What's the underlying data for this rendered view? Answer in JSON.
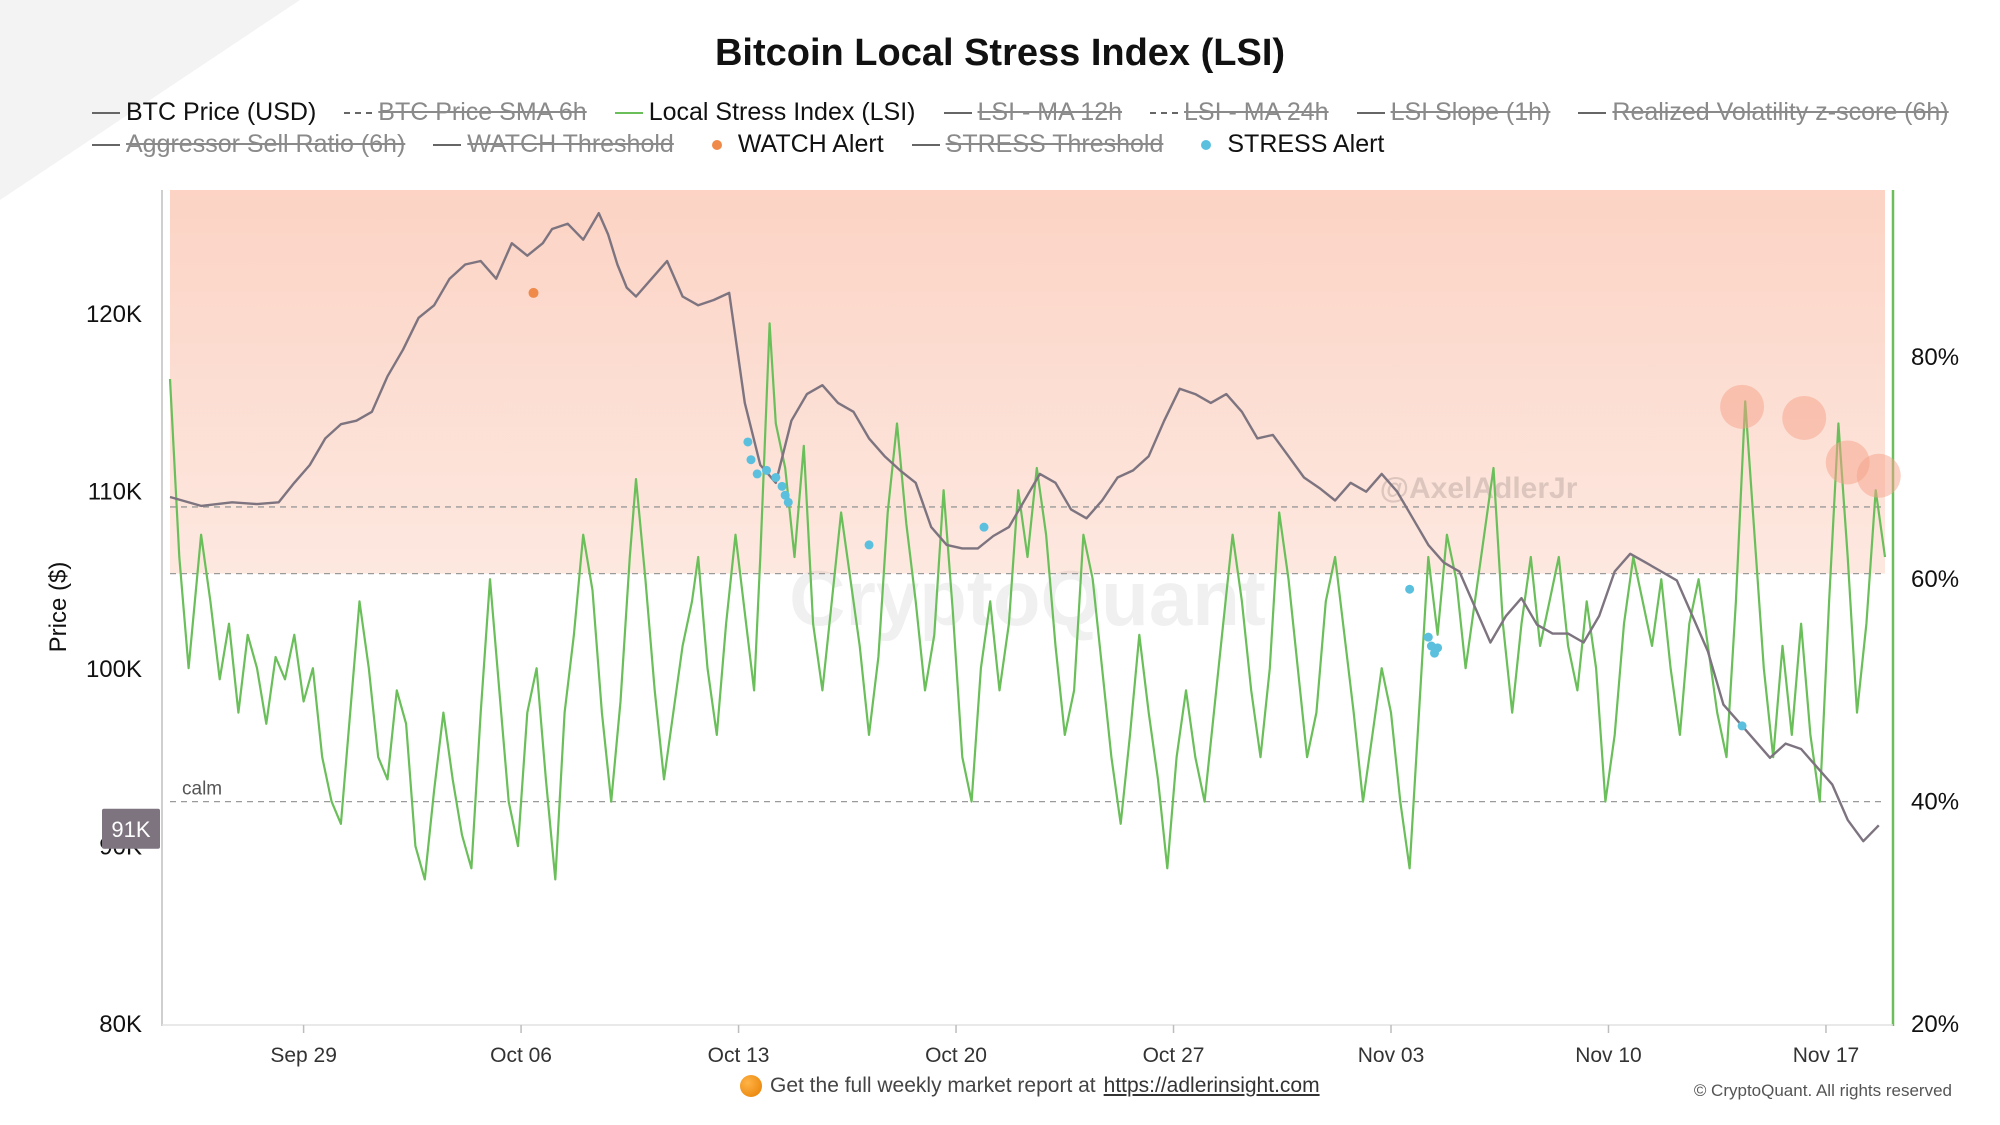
{
  "chart_data": {
    "type": "line",
    "title": "Bitcoin Local Stress Index (LSI)",
    "ylabel": "Price ($)",
    "ylim_left": [
      80000,
      127000
    ],
    "ylim_right": [
      20,
      95
    ],
    "left_ticks": [
      {
        "value": 80000,
        "label": "80K"
      },
      {
        "value": 90000,
        "label": "90K"
      },
      {
        "value": 100000,
        "label": "100K"
      },
      {
        "value": 110000,
        "label": "110K"
      },
      {
        "value": 120000,
        "label": "120K"
      }
    ],
    "right_ticks": [
      {
        "value": 20,
        "label": "20%"
      },
      {
        "value": 40,
        "label": "40%"
      },
      {
        "value": 60,
        "label": "60%"
      },
      {
        "value": 80,
        "label": "80%"
      }
    ],
    "x_ticks": [
      {
        "t": 4.3,
        "label": "Sep 29"
      },
      {
        "t": 11.3,
        "label": "Oct 06"
      },
      {
        "t": 18.3,
        "label": "Oct 13"
      },
      {
        "t": 25.3,
        "label": "Oct 20"
      },
      {
        "t": 32.3,
        "label": "Oct 27"
      },
      {
        "t": 39.3,
        "label": "Nov 03"
      },
      {
        "t": 46.3,
        "label": "Nov 10"
      },
      {
        "t": 53.3,
        "label": "Nov 17"
      }
    ],
    "xlim": [
      0,
      55.2
    ],
    "legend": [
      {
        "label": "BTC Price (USD)",
        "style": "line",
        "color": "#666666",
        "active": true
      },
      {
        "label": "BTC Price SMA 6h",
        "style": "dashed",
        "color": "#666666",
        "active": false
      },
      {
        "label": "Local Stress Index (LSI)",
        "style": "line",
        "color": "#6abf5a",
        "active": true
      },
      {
        "label": "LSI - MA 12h",
        "style": "line",
        "color": "#666666",
        "active": false
      },
      {
        "label": "LSI - MA 24h",
        "style": "dashed",
        "color": "#666666",
        "active": false
      },
      {
        "label": "LSI Slope (1h)",
        "style": "line",
        "color": "#666666",
        "active": false
      },
      {
        "label": "Realized Volatility z-score (6h)",
        "style": "line",
        "color": "#666666",
        "active": false
      },
      {
        "label": "Aggressor Sell Ratio (6h)",
        "style": "line",
        "color": "#666666",
        "active": false
      },
      {
        "label": "WATCH Threshold",
        "style": "line",
        "color": "#666666",
        "active": false
      },
      {
        "label": "WATCH Alert",
        "style": "dot",
        "color": "#f08a4b",
        "active": true
      },
      {
        "label": "STRESS Threshold",
        "style": "line",
        "color": "#666666",
        "active": false
      },
      {
        "label": "STRESS Alert",
        "style": "dot",
        "color": "#5bc0de",
        "active": true
      }
    ],
    "thresholds": [
      {
        "name": "stress",
        "value": 66.5
      },
      {
        "name": "watch",
        "value": 60.5
      },
      {
        "name": "calm",
        "value": 40,
        "label": "calm"
      }
    ],
    "current_price_label": "91K",
    "current_price": 91000,
    "btc_price": {
      "name": "BTC Price (USD)",
      "points": [
        [
          0,
          109700
        ],
        [
          1,
          109200
        ],
        [
          2,
          109400
        ],
        [
          2.8,
          109300
        ],
        [
          3.5,
          109400
        ],
        [
          4,
          110500
        ],
        [
          4.5,
          111500
        ],
        [
          5,
          113000
        ],
        [
          5.5,
          113800
        ],
        [
          6,
          114000
        ],
        [
          6.5,
          114500
        ],
        [
          7,
          116500
        ],
        [
          7.5,
          118000
        ],
        [
          8,
          119800
        ],
        [
          8.5,
          120500
        ],
        [
          9,
          122000
        ],
        [
          9.5,
          122800
        ],
        [
          10,
          123000
        ],
        [
          10.5,
          122000
        ],
        [
          11,
          124000
        ],
        [
          11.5,
          123300
        ],
        [
          12,
          124000
        ],
        [
          12.3,
          124800
        ],
        [
          12.8,
          125100
        ],
        [
          13.3,
          124200
        ],
        [
          13.8,
          125700
        ],
        [
          14.1,
          124500
        ],
        [
          14.4,
          122800
        ],
        [
          14.7,
          121500
        ],
        [
          15.0,
          121000
        ],
        [
          15.5,
          122000
        ],
        [
          16,
          123000
        ],
        [
          16.5,
          121000
        ],
        [
          17,
          120500
        ],
        [
          17.5,
          120800
        ],
        [
          18,
          121200
        ],
        [
          18.5,
          115000
        ],
        [
          19,
          111500
        ],
        [
          19.5,
          110500
        ],
        [
          20,
          114000
        ],
        [
          20.5,
          115500
        ],
        [
          21,
          116000
        ],
        [
          21.5,
          115000
        ],
        [
          22,
          114500
        ],
        [
          22.5,
          113000
        ],
        [
          23,
          112000
        ],
        [
          23.5,
          111200
        ],
        [
          24,
          110500
        ],
        [
          24.5,
          108000
        ],
        [
          25,
          107000
        ],
        [
          25.5,
          106800
        ],
        [
          26,
          106800
        ],
        [
          26.5,
          107500
        ],
        [
          27,
          108000
        ],
        [
          27.5,
          109500
        ],
        [
          28,
          111000
        ],
        [
          28.5,
          110500
        ],
        [
          29,
          109000
        ],
        [
          29.5,
          108500
        ],
        [
          30,
          109500
        ],
        [
          30.5,
          110800
        ],
        [
          31,
          111200
        ],
        [
          31.5,
          112000
        ],
        [
          32,
          114000
        ],
        [
          32.5,
          115800
        ],
        [
          33,
          115500
        ],
        [
          33.5,
          115000
        ],
        [
          34,
          115500
        ],
        [
          34.5,
          114500
        ],
        [
          35,
          113000
        ],
        [
          35.5,
          113200
        ],
        [
          36,
          112000
        ],
        [
          36.5,
          110800
        ],
        [
          37,
          110200
        ],
        [
          37.5,
          109500
        ],
        [
          38,
          110500
        ],
        [
          38.5,
          110000
        ],
        [
          39,
          111000
        ],
        [
          39.5,
          110000
        ],
        [
          40,
          108500
        ],
        [
          40.5,
          107000
        ],
        [
          41,
          106000
        ],
        [
          41.5,
          105500
        ],
        [
          42,
          103500
        ],
        [
          42.5,
          101500
        ],
        [
          43,
          103000
        ],
        [
          43.5,
          104000
        ],
        [
          44,
          102500
        ],
        [
          44.5,
          102000
        ],
        [
          45,
          102000
        ],
        [
          45.5,
          101500
        ],
        [
          46,
          103000
        ],
        [
          46.5,
          105500
        ],
        [
          47,
          106500
        ],
        [
          47.5,
          106000
        ],
        [
          48,
          105500
        ],
        [
          48.5,
          105000
        ],
        [
          49,
          103000
        ],
        [
          49.5,
          101000
        ],
        [
          50,
          98000
        ],
        [
          50.5,
          97000
        ],
        [
          51,
          96000
        ],
        [
          51.5,
          95000
        ],
        [
          52,
          95800
        ],
        [
          52.5,
          95500
        ],
        [
          53,
          94500
        ],
        [
          53.5,
          93500
        ],
        [
          54,
          91500
        ],
        [
          54.5,
          90300
        ],
        [
          55,
          91200
        ]
      ]
    },
    "lsi": {
      "name": "Local Stress Index (LSI)",
      "unit": "%",
      "points": [
        [
          0,
          78
        ],
        [
          0.3,
          62
        ],
        [
          0.6,
          52
        ],
        [
          1.0,
          64
        ],
        [
          1.3,
          58
        ],
        [
          1.6,
          51
        ],
        [
          1.9,
          56
        ],
        [
          2.2,
          48
        ],
        [
          2.5,
          55
        ],
        [
          2.8,
          52
        ],
        [
          3.1,
          47
        ],
        [
          3.4,
          53
        ],
        [
          3.7,
          51
        ],
        [
          4.0,
          55
        ],
        [
          4.3,
          49
        ],
        [
          4.6,
          52
        ],
        [
          4.9,
          44
        ],
        [
          5.2,
          40
        ],
        [
          5.5,
          38
        ],
        [
          5.8,
          48
        ],
        [
          6.1,
          58
        ],
        [
          6.4,
          52
        ],
        [
          6.7,
          44
        ],
        [
          7.0,
          42
        ],
        [
          7.3,
          50
        ],
        [
          7.6,
          47
        ],
        [
          7.9,
          36
        ],
        [
          8.2,
          33
        ],
        [
          8.5,
          41
        ],
        [
          8.8,
          48
        ],
        [
          9.1,
          42
        ],
        [
          9.4,
          37
        ],
        [
          9.7,
          34
        ],
        [
          10.0,
          48
        ],
        [
          10.3,
          60
        ],
        [
          10.6,
          50
        ],
        [
          10.9,
          40
        ],
        [
          11.2,
          36
        ],
        [
          11.5,
          48
        ],
        [
          11.8,
          52
        ],
        [
          12.1,
          42
        ],
        [
          12.4,
          33
        ],
        [
          12.7,
          48
        ],
        [
          13.0,
          55
        ],
        [
          13.3,
          64
        ],
        [
          13.6,
          59
        ],
        [
          13.9,
          48
        ],
        [
          14.2,
          40
        ],
        [
          14.5,
          49
        ],
        [
          14.8,
          62
        ],
        [
          15.0,
          69
        ],
        [
          15.3,
          60
        ],
        [
          15.6,
          50
        ],
        [
          15.9,
          42
        ],
        [
          16.2,
          48
        ],
        [
          16.5,
          54
        ],
        [
          16.8,
          58
        ],
        [
          17.0,
          62
        ],
        [
          17.3,
          52
        ],
        [
          17.6,
          46
        ],
        [
          17.9,
          56
        ],
        [
          18.2,
          64
        ],
        [
          18.5,
          57
        ],
        [
          18.8,
          50
        ],
        [
          19.0,
          62
        ],
        [
          19.3,
          83
        ],
        [
          19.5,
          74
        ],
        [
          19.8,
          70
        ],
        [
          20.1,
          62
        ],
        [
          20.4,
          72
        ],
        [
          20.7,
          56
        ],
        [
          21.0,
          50
        ],
        [
          21.3,
          58
        ],
        [
          21.6,
          66
        ],
        [
          21.9,
          60
        ],
        [
          22.2,
          54
        ],
        [
          22.5,
          46
        ],
        [
          22.8,
          53
        ],
        [
          23.1,
          66
        ],
        [
          23.4,
          74
        ],
        [
          23.7,
          65
        ],
        [
          24.0,
          58
        ],
        [
          24.3,
          50
        ],
        [
          24.6,
          55
        ],
        [
          24.9,
          68
        ],
        [
          25.2,
          57
        ],
        [
          25.5,
          44
        ],
        [
          25.8,
          40
        ],
        [
          26.1,
          52
        ],
        [
          26.4,
          58
        ],
        [
          26.7,
          50
        ],
        [
          27.0,
          56
        ],
        [
          27.3,
          68
        ],
        [
          27.6,
          62
        ],
        [
          27.9,
          70
        ],
        [
          28.2,
          64
        ],
        [
          28.5,
          54
        ],
        [
          28.8,
          46
        ],
        [
          29.1,
          50
        ],
        [
          29.4,
          64
        ],
        [
          29.7,
          60
        ],
        [
          30.0,
          52
        ],
        [
          30.3,
          44
        ],
        [
          30.6,
          38
        ],
        [
          30.9,
          46
        ],
        [
          31.2,
          55
        ],
        [
          31.5,
          48
        ],
        [
          31.8,
          42
        ],
        [
          32.1,
          34
        ],
        [
          32.4,
          44
        ],
        [
          32.7,
          50
        ],
        [
          33.0,
          44
        ],
        [
          33.3,
          40
        ],
        [
          33.6,
          48
        ],
        [
          33.9,
          56
        ],
        [
          34.2,
          64
        ],
        [
          34.5,
          58
        ],
        [
          34.8,
          50
        ],
        [
          35.1,
          44
        ],
        [
          35.4,
          52
        ],
        [
          35.7,
          66
        ],
        [
          36.0,
          60
        ],
        [
          36.3,
          52
        ],
        [
          36.6,
          44
        ],
        [
          36.9,
          48
        ],
        [
          37.2,
          58
        ],
        [
          37.5,
          62
        ],
        [
          37.8,
          55
        ],
        [
          38.1,
          48
        ],
        [
          38.4,
          40
        ],
        [
          38.7,
          46
        ],
        [
          39.0,
          52
        ],
        [
          39.3,
          48
        ],
        [
          39.6,
          40
        ],
        [
          39.9,
          34
        ],
        [
          40.2,
          48
        ],
        [
          40.5,
          62
        ],
        [
          40.8,
          55
        ],
        [
          41.1,
          64
        ],
        [
          41.4,
          60
        ],
        [
          41.7,
          52
        ],
        [
          42.0,
          58
        ],
        [
          42.3,
          64
        ],
        [
          42.6,
          70
        ],
        [
          42.9,
          56
        ],
        [
          43.2,
          48
        ],
        [
          43.5,
          56
        ],
        [
          43.8,
          62
        ],
        [
          44.1,
          54
        ],
        [
          44.4,
          58
        ],
        [
          44.7,
          62
        ],
        [
          45.0,
          54
        ],
        [
          45.3,
          50
        ],
        [
          45.6,
          58
        ],
        [
          45.9,
          52
        ],
        [
          46.2,
          40
        ],
        [
          46.5,
          46
        ],
        [
          46.8,
          56
        ],
        [
          47.1,
          62
        ],
        [
          47.4,
          58
        ],
        [
          47.7,
          54
        ],
        [
          48.0,
          60
        ],
        [
          48.3,
          52
        ],
        [
          48.6,
          46
        ],
        [
          48.9,
          56
        ],
        [
          49.2,
          60
        ],
        [
          49.5,
          54
        ],
        [
          49.8,
          48
        ],
        [
          50.1,
          44
        ],
        [
          50.4,
          58
        ],
        [
          50.7,
          76
        ],
        [
          51.0,
          64
        ],
        [
          51.3,
          52
        ],
        [
          51.6,
          44
        ],
        [
          51.9,
          54
        ],
        [
          52.2,
          46
        ],
        [
          52.5,
          56
        ],
        [
          52.8,
          46
        ],
        [
          53.1,
          40
        ],
        [
          53.4,
          58
        ],
        [
          53.7,
          74
        ],
        [
          54.0,
          62
        ],
        [
          54.3,
          48
        ],
        [
          54.6,
          56
        ],
        [
          54.9,
          68
        ],
        [
          55.2,
          62
        ]
      ]
    },
    "watch_alerts": [
      [
        11.7,
        121200
      ]
    ],
    "stress_alerts": [
      [
        18.6,
        112800
      ],
      [
        18.7,
        111800
      ],
      [
        18.9,
        111000
      ],
      [
        19.2,
        111200
      ],
      [
        19.5,
        110800
      ],
      [
        19.7,
        110300
      ],
      [
        19.8,
        109800
      ],
      [
        19.9,
        109400
      ],
      [
        22.5,
        107000
      ],
      [
        26.2,
        108000
      ],
      [
        39.9,
        104500
      ],
      [
        40.5,
        101800
      ],
      [
        40.6,
        101300
      ],
      [
        40.7,
        100900
      ],
      [
        40.8,
        101200
      ],
      [
        50.6,
        96800
      ]
    ],
    "stress_markers_lsi": [
      [
        50.6,
        75.5
      ],
      [
        52.6,
        74.5
      ],
      [
        54.0,
        70.5
      ],
      [
        55.0,
        69.3
      ]
    ],
    "watermark_brand": "CryptoQuant",
    "watermark_handle": "@AxelAdlerJr",
    "background_colors": {
      "stress_zone": "#fde1d7",
      "lsi_line": "#6abf5a",
      "price_line": "#7d7480"
    }
  },
  "footer": {
    "text": "Get the full weekly market report at",
    "link": "https://adlerinsight.com",
    "copyright": "© CryptoQuant. All rights reserved"
  }
}
